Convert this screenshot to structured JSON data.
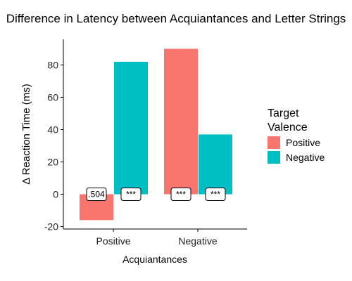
{
  "chart_data": {
    "type": "bar",
    "title": "Difference in Latency between Acquiantances and Letter Strings",
    "xlabel": "Acquiantances",
    "ylabel": "Δ Reaction Time (ms)",
    "ylim": [
      -22,
      96
    ],
    "yticks": [
      -20,
      0,
      20,
      40,
      60,
      80
    ],
    "categories": [
      "Positive",
      "Negative"
    ],
    "legend": {
      "title_line1": "Target",
      "title_line2": "Valence",
      "placement": "right"
    },
    "series": [
      {
        "name": "Positive",
        "color": "#F8766D",
        "values": [
          -16,
          90
        ]
      },
      {
        "name": "Negative",
        "color": "#00BFC4",
        "values": [
          82,
          37
        ]
      }
    ],
    "annotations": [
      [
        ".504",
        "***"
      ],
      [
        "***",
        "***"
      ]
    ]
  }
}
